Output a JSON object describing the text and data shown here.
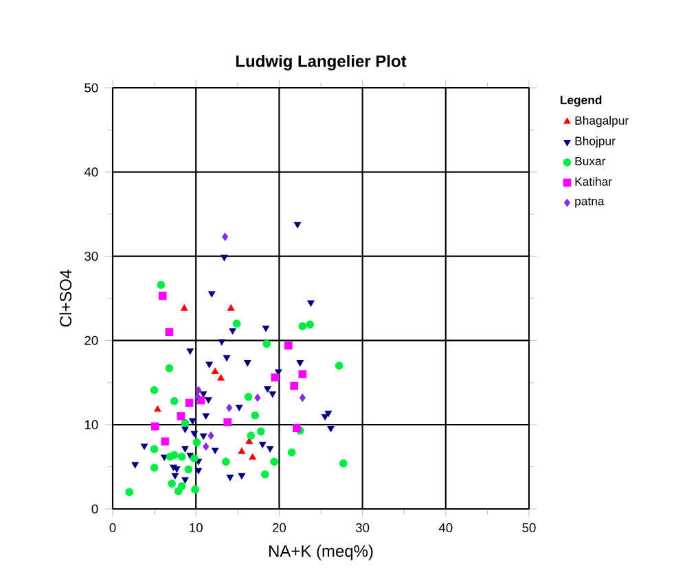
{
  "chart_data": {
    "type": "scatter",
    "title": "Ludwig Langelier Plot",
    "xlabel": "NA+K (meq%)",
    "ylabel": "Cl+SO4",
    "legend_title": "Legend",
    "legend": "top right",
    "grid": true,
    "xlim": [
      0,
      50
    ],
    "ylim": [
      0,
      50
    ],
    "xticks": [
      0,
      10,
      20,
      30,
      40,
      50
    ],
    "yticks": [
      0,
      10,
      20,
      30,
      40,
      50
    ],
    "series": [
      {
        "name": "Bhagalpur",
        "color": "#ff0000",
        "marker": "triangle",
        "x": [
          8.6,
          14.2,
          12.3,
          13.0,
          5.4,
          16.4,
          15.5,
          16.8
        ],
        "values": [
          23.8,
          23.8,
          16.3,
          15.5,
          11.8,
          8.0,
          6.8,
          6.1
        ]
      },
      {
        "name": "Bhojpur",
        "color": "#000080",
        "marker": "triangle down",
        "x": [
          13.4,
          11.9,
          13.1,
          9.3,
          13.7,
          11.6,
          10.9,
          11.5,
          11.2,
          8.7,
          9.6,
          9.8,
          10.9,
          3.8,
          12.3,
          8.7,
          6.2,
          9.3,
          10.3,
          2.7,
          7.3,
          7.7,
          10.3,
          7.5,
          8.7,
          14.1,
          22.2,
          23.8,
          14.4,
          18.4,
          16.2,
          22.5,
          19.9,
          18.6,
          19.2,
          15.2,
          25.9,
          25.5,
          26.2,
          18.0,
          18.9,
          15.5
        ],
        "values": [
          29.9,
          25.6,
          19.9,
          18.8,
          18.0,
          17.2,
          13.7,
          13.0,
          11.1,
          9.5,
          10.5,
          9.0,
          8.7,
          7.5,
          7.0,
          7.2,
          6.2,
          6.4,
          5.7,
          5.3,
          5.0,
          4.8,
          4.6,
          4.0,
          3.5,
          3.8,
          33.8,
          24.5,
          21.2,
          21.5,
          17.4,
          17.4,
          16.3,
          14.3,
          13.7,
          12.1,
          11.4,
          11.0,
          9.6,
          7.7,
          7.2,
          4.0
        ]
      },
      {
        "name": "Buxar",
        "color": "#00ee44",
        "marker": "circle",
        "x": [
          5.8,
          6.8,
          5.0,
          7.4,
          8.7,
          10.1,
          5.0,
          6.9,
          7.4,
          8.3,
          9.8,
          13.6,
          5.0,
          9.1,
          7.1,
          8.3,
          9.9,
          2.0,
          7.9,
          14.9,
          22.8,
          23.7,
          18.5,
          27.2,
          16.3,
          17.1,
          22.5,
          17.8,
          16.6,
          21.5,
          19.4,
          27.7,
          18.3
        ],
        "values": [
          26.6,
          16.7,
          14.1,
          12.8,
          10.2,
          7.9,
          7.1,
          6.2,
          6.4,
          6.2,
          6.0,
          5.6,
          4.9,
          4.7,
          3.0,
          2.7,
          2.3,
          2.0,
          2.1,
          22.0,
          21.7,
          21.9,
          19.6,
          17.0,
          13.3,
          11.1,
          9.3,
          9.2,
          8.7,
          6.7,
          5.6,
          5.4,
          4.1
        ]
      },
      {
        "name": "Katihar",
        "color": "#ff00ff",
        "marker": "square",
        "x": [
          6.0,
          6.8,
          9.2,
          10.6,
          8.2,
          5.1,
          13.8,
          6.3,
          21.1,
          19.5,
          22.8,
          21.8,
          22.1
        ],
        "values": [
          25.3,
          21.0,
          12.6,
          12.9,
          11.0,
          9.8,
          10.3,
          8.0,
          19.4,
          15.6,
          16.0,
          14.6,
          9.6
        ]
      },
      {
        "name": "patna",
        "color": "#8a2be2",
        "marker": "diamond",
        "x": [
          13.5,
          10.3,
          10.2,
          14.0,
          11.8,
          11.2,
          17.4,
          22.8
        ],
        "values": [
          32.3,
          14.1,
          13.3,
          12.0,
          8.7,
          7.4,
          13.2,
          13.2
        ]
      }
    ]
  }
}
